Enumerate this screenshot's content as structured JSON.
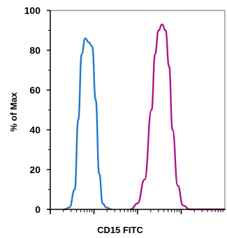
{
  "chart_data": {
    "type": "line",
    "xlabel": "CD15 FITC",
    "ylabel": "% of Max",
    "x_scale": "log",
    "xlim": [
      0,
      100
    ],
    "ylim": [
      0,
      100
    ],
    "y_ticks": [
      0,
      20,
      40,
      60,
      80,
      100
    ],
    "y_tick_labels": [
      "0",
      "20",
      "40",
      "60",
      "80",
      "100"
    ],
    "grid": false,
    "legend": "none",
    "colors": {
      "isotype": "#1f78c8",
      "stained": "#b0148c",
      "axis": "#000000",
      "frame": "#999999"
    },
    "series": [
      {
        "color": "#1f78c8",
        "x": [
          8,
          11,
          14,
          16,
          18,
          20,
          22,
          24,
          26,
          28,
          30,
          32,
          35
        ],
        "y": [
          0,
          1,
          10,
          45,
          78,
          86,
          84,
          82,
          55,
          18,
          3,
          1,
          0
        ]
      },
      {
        "color": "#b0148c",
        "x": [
          46,
          50,
          54,
          58,
          60,
          62,
          64,
          66,
          68,
          70,
          73,
          76,
          80,
          100
        ],
        "y": [
          0,
          3,
          15,
          50,
          78,
          90,
          93,
          90,
          72,
          40,
          12,
          2,
          0,
          0
        ]
      }
    ]
  }
}
